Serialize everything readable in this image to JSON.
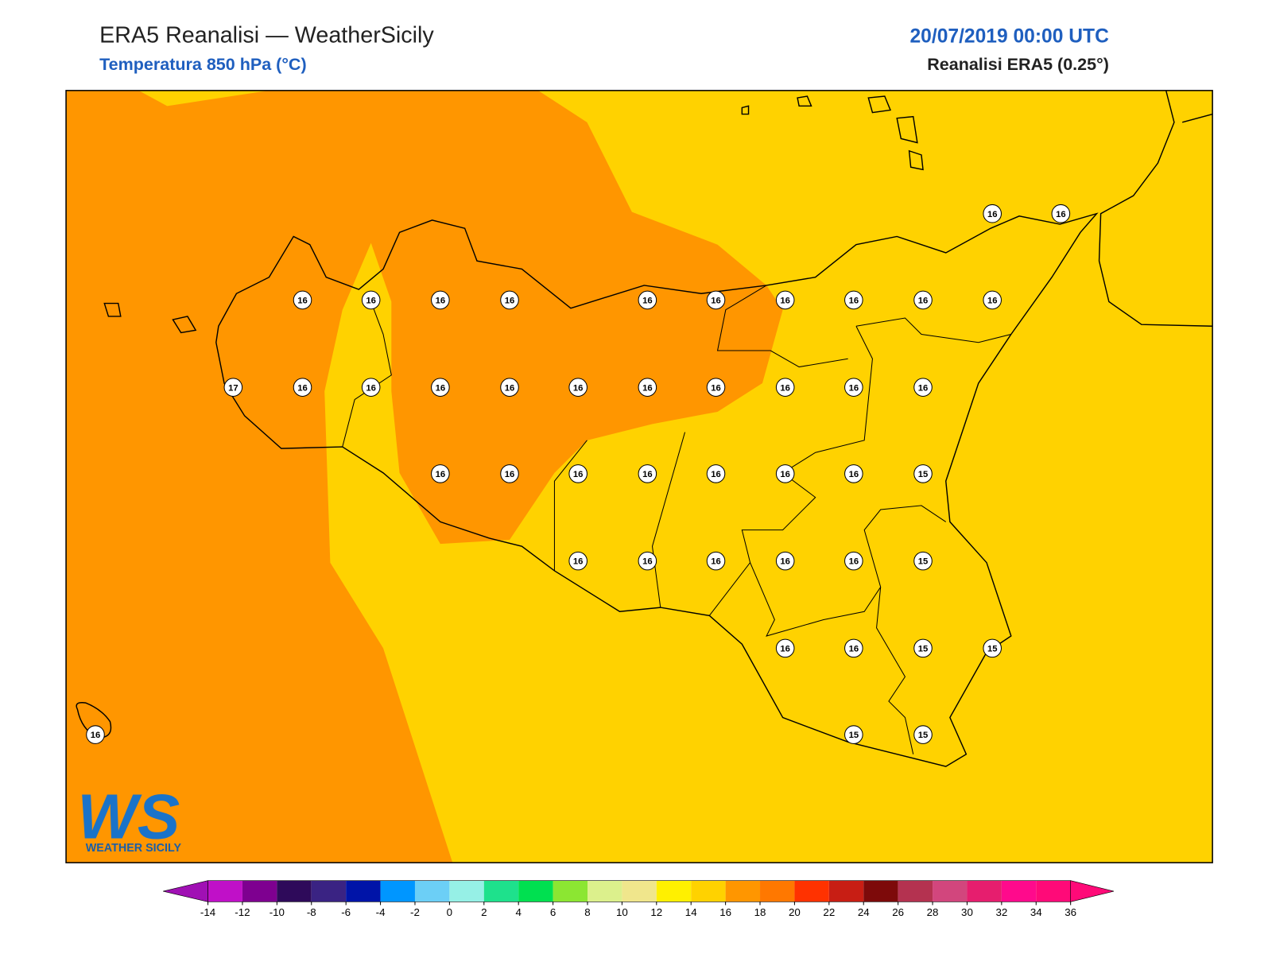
{
  "header": {
    "title": "ERA5 Reanalisi — WeatherSicily",
    "subtitle": "Temperatura 850 hPa (°C)",
    "datetime": "20/07/2019 00:00 UTC",
    "source": "Reanalisi ERA5 (0.25°)"
  },
  "map": {
    "fill_colors": [
      "#ff9600",
      "#ffd200"
    ],
    "stations": [
      16,
      16,
      16,
      16,
      16,
      16,
      16,
      16,
      16,
      16,
      16,
      16,
      17,
      16,
      16,
      16,
      16,
      16,
      16,
      16,
      16,
      16,
      16,
      16,
      16,
      16,
      16,
      16,
      16,
      16,
      15,
      16,
      16,
      16,
      16,
      16,
      15,
      16,
      16,
      15,
      15,
      15,
      15,
      16
    ]
  },
  "logo": {
    "mark": "WS",
    "name": "WEATHER SICILY"
  },
  "colorbar": {
    "ticks": [
      -14,
      -12,
      -10,
      -8,
      -6,
      -4,
      -2,
      0,
      2,
      4,
      6,
      8,
      10,
      12,
      14,
      16,
      18,
      20,
      22,
      24,
      26,
      28,
      30,
      32,
      34,
      36
    ],
    "colors": [
      "#c010c8",
      "#7e0090",
      "#2e0a5a",
      "#3a2383",
      "#0014a8",
      "#0096ff",
      "#6ccff6",
      "#96f0e6",
      "#1ee18c",
      "#00e050",
      "#8ce632",
      "#dcf08c",
      "#f0e68c",
      "#fff000",
      "#ffd200",
      "#ff9600",
      "#ff7800",
      "#ff3200",
      "#c81e14",
      "#7d0a0a",
      "#b43250",
      "#d2467d",
      "#e61e6e",
      "#ff0a8c",
      "#ff0a78"
    ],
    "under": "#a010b4",
    "over": "#ff0a78"
  }
}
